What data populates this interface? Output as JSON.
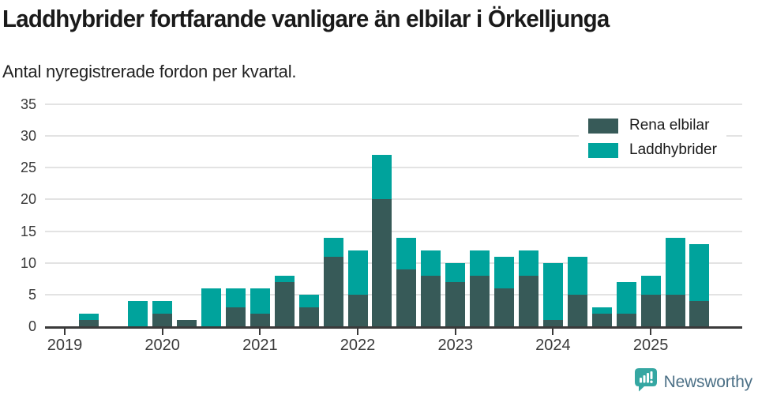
{
  "chart_data": {
    "type": "bar",
    "stacked": true,
    "title": "Laddhybrider fortfarande vanligare än elbilar i Örkelljunga",
    "subtitle": "Antal nyregistrerade fordon per kvartal.",
    "categories": [
      "2019 Q1",
      "2019 Q2",
      "2019 Q3",
      "2019 Q4",
      "2020 Q1",
      "2020 Q2",
      "2020 Q3",
      "2020 Q4",
      "2021 Q1",
      "2021 Q2",
      "2021 Q3",
      "2021 Q4",
      "2022 Q1",
      "2022 Q2",
      "2022 Q3",
      "2022 Q4",
      "2023 Q1",
      "2023 Q2",
      "2023 Q3",
      "2023 Q4",
      "2024 Q1",
      "2024 Q2",
      "2024 Q3",
      "2024 Q4",
      "2025 Q1",
      "2025 Q2",
      "2025 Q3"
    ],
    "series": [
      {
        "name": "Rena elbilar",
        "color": "#375A58",
        "values": [
          0,
          1,
          0,
          0,
          2,
          1,
          0,
          3,
          2,
          7,
          3,
          11,
          5,
          20,
          9,
          8,
          7,
          8,
          6,
          8,
          1,
          5,
          2,
          2,
          5,
          5,
          4
        ]
      },
      {
        "name": "Laddhybrider",
        "color": "#00A39C",
        "values": [
          0,
          1,
          0,
          4,
          2,
          0,
          6,
          3,
          4,
          1,
          2,
          3,
          7,
          7,
          5,
          4,
          3,
          4,
          5,
          4,
          9,
          6,
          1,
          5,
          3,
          9,
          9
        ]
      }
    ],
    "x_tick_labels": [
      "2019",
      "2020",
      "2021",
      "2022",
      "2023",
      "2024",
      "2025"
    ],
    "y_ticks": [
      0,
      5,
      10,
      15,
      20,
      25,
      30,
      35
    ],
    "ylim": [
      0,
      35
    ],
    "grid": "horizontal",
    "legend_position": "top-right",
    "axis_color": "#3a3a3a",
    "grid_color": "#e3e3e3"
  },
  "footer": {
    "brand": "Newsworthy",
    "icon": "newsworthy-logo-icon",
    "icon_color": "#35A7A2",
    "text_color": "#4C7086"
  }
}
